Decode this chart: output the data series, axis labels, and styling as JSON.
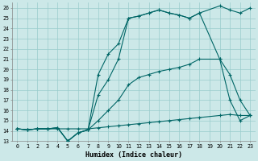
{
  "xlabel": "Humidex (Indice chaleur)",
  "bg_color": "#cce8e8",
  "line_color": "#006666",
  "grid_color": "#99cccc",
  "xlim": [
    -0.5,
    23.5
  ],
  "ylim": [
    13,
    26.5
  ],
  "xticks": [
    0,
    1,
    2,
    3,
    4,
    5,
    6,
    7,
    8,
    9,
    10,
    11,
    12,
    13,
    14,
    15,
    16,
    17,
    18,
    19,
    20,
    21,
    22,
    23
  ],
  "yticks": [
    13,
    14,
    15,
    16,
    17,
    18,
    19,
    20,
    21,
    22,
    23,
    24,
    25,
    26
  ],
  "series": [
    {
      "x": [
        0,
        1,
        2,
        3,
        4,
        5,
        6,
        7,
        8,
        9,
        10,
        11,
        12,
        13,
        14,
        15,
        16,
        17,
        18,
        20,
        21,
        22,
        23
      ],
      "y": [
        14.2,
        14.1,
        14.2,
        14.2,
        14.2,
        14.2,
        14.2,
        14.2,
        14.3,
        14.4,
        14.5,
        14.6,
        14.7,
        14.8,
        14.9,
        15.0,
        15.1,
        15.2,
        15.3,
        15.5,
        15.6,
        15.5,
        15.5
      ]
    },
    {
      "x": [
        0,
        1,
        2,
        3,
        4,
        5,
        6,
        7,
        8,
        9,
        10,
        11,
        12,
        13,
        14,
        15,
        16,
        17,
        18,
        20,
        21,
        22,
        23
      ],
      "y": [
        14.2,
        14.1,
        14.2,
        14.2,
        14.3,
        13.0,
        13.8,
        14.1,
        15.0,
        16.0,
        17.0,
        18.5,
        19.2,
        19.5,
        19.8,
        20.0,
        20.2,
        20.5,
        21.0,
        21.0,
        19.5,
        17.0,
        15.5
      ]
    },
    {
      "x": [
        0,
        1,
        2,
        3,
        4,
        5,
        6,
        7,
        8,
        9,
        10,
        11,
        12,
        13,
        14,
        15,
        16,
        17,
        18,
        20,
        21,
        22,
        23
      ],
      "y": [
        14.2,
        14.1,
        14.2,
        14.2,
        14.3,
        13.0,
        13.8,
        14.1,
        19.5,
        21.5,
        22.5,
        25.0,
        25.2,
        25.5,
        25.8,
        25.5,
        25.3,
        25.0,
        25.5,
        26.2,
        25.8,
        25.5,
        26.0
      ]
    },
    {
      "x": [
        0,
        1,
        2,
        3,
        4,
        5,
        6,
        7,
        8,
        9,
        10,
        11,
        12,
        13,
        14,
        15,
        16,
        17,
        18,
        20,
        21,
        22,
        23
      ],
      "y": [
        14.2,
        14.1,
        14.2,
        14.2,
        14.3,
        13.0,
        13.8,
        14.1,
        17.5,
        19.0,
        21.0,
        25.0,
        25.2,
        25.5,
        25.8,
        25.5,
        25.3,
        25.0,
        25.5,
        21.0,
        17.0,
        15.0,
        15.5
      ]
    }
  ]
}
